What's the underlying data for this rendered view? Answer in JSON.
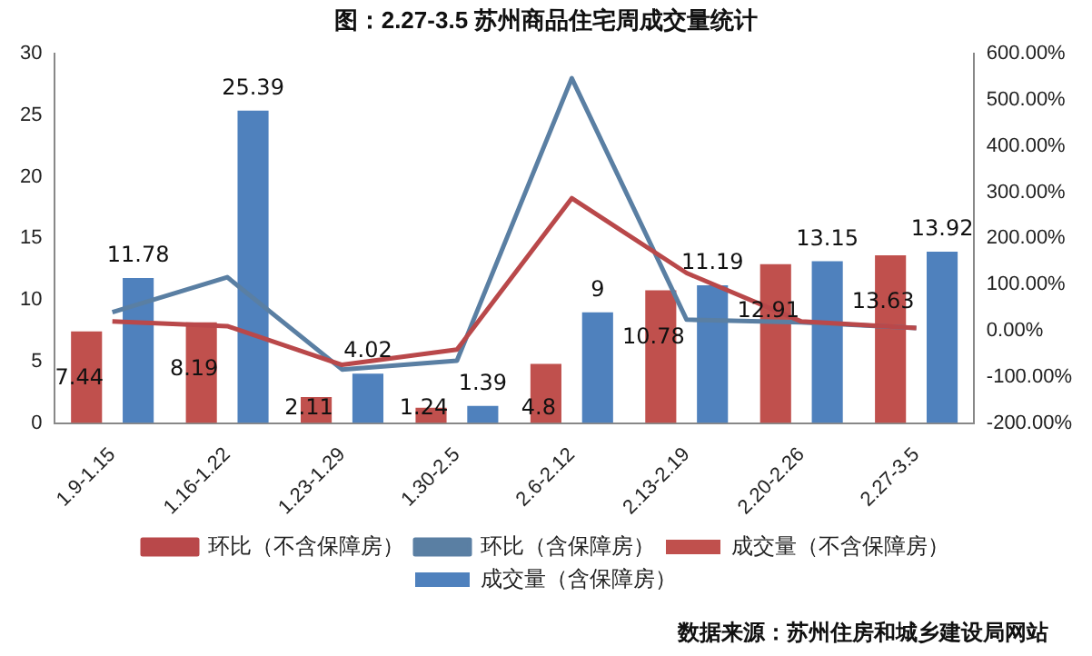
{
  "chart_data": {
    "type": "bar",
    "title": "图：2.27-3.5 苏州商品住宅周成交量统计",
    "categories": [
      "1.9-1.15",
      "1.16-1.22",
      "1.23-1.29",
      "1.30-2.5",
      "2.6-2.12",
      "2.13-2.19",
      "2.20-2.26",
      "2.27-3.5"
    ],
    "series": [
      {
        "name": "成交量（不含保障房）",
        "color": "#c0504d",
        "values": [
          7.44,
          8.19,
          2.11,
          1.24,
          4.8,
          10.78,
          12.91,
          13.63
        ],
        "value_labels": [
          "7.44",
          "8.19",
          "2.11",
          "1.24",
          "4.8",
          "10.78",
          "12.91",
          "13.63"
        ]
      },
      {
        "name": "成交量（含保障房）",
        "color": "#4f81bd",
        "values": [
          11.78,
          25.39,
          4.02,
          1.39,
          9,
          11.19,
          13.15,
          13.92
        ],
        "value_labels": [
          "11.78",
          "25.39",
          "4.02",
          "1.39",
          "9",
          "11.19",
          "13.15",
          "13.92"
        ]
      },
      {
        "name": "环比（不含保障房）",
        "type": "line",
        "axis": "y2",
        "color": "#b9484a",
        "values": [
          20,
          10,
          -74,
          -41,
          287,
          125,
          20,
          6
        ]
      },
      {
        "name": "环比（含保障房）",
        "type": "line",
        "axis": "y2",
        "color": "#5a7fa3",
        "values": [
          40,
          116,
          -84,
          -65,
          547,
          24,
          18,
          6
        ]
      }
    ],
    "ylim": [
      0,
      30
    ],
    "yticks": [
      0,
      5,
      10,
      15,
      20,
      25,
      30
    ],
    "y2lim": [
      -200,
      600
    ],
    "y2ticks": [
      {
        "value": -200,
        "label": "-200.00%"
      },
      {
        "value": -100,
        "label": "-100.00%"
      },
      {
        "value": 0,
        "label": "0.00%"
      },
      {
        "value": 100,
        "label": "100.00%"
      },
      {
        "value": 200,
        "label": "200.00%"
      },
      {
        "value": 300,
        "label": "300.00%"
      },
      {
        "value": 400,
        "label": "400.00%"
      },
      {
        "value": 500,
        "label": "500.00%"
      },
      {
        "value": 600,
        "label": "600.00%"
      }
    ],
    "grid": false,
    "legend": "bottom",
    "marker": "none",
    "line_style": "solid",
    "annotations": [
      "数据来源：苏州住房和城乡建设局网站"
    ]
  }
}
